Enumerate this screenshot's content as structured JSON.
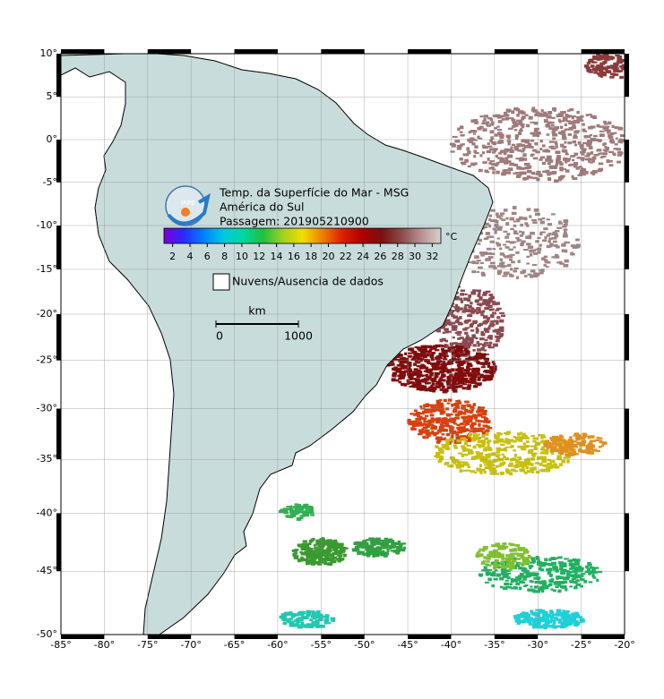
{
  "map": {
    "lon_range": [
      -85,
      -20
    ],
    "lat_range": [
      -50,
      10
    ],
    "lon_ticks": [
      {
        "value": -85,
        "label": "-85°"
      },
      {
        "value": -80,
        "label": "-80°"
      },
      {
        "value": -75,
        "label": "-75°"
      },
      {
        "value": -70,
        "label": "-70°"
      },
      {
        "value": -65,
        "label": "-65°"
      },
      {
        "value": -60,
        "label": "-60°"
      },
      {
        "value": -55,
        "label": "-55°"
      },
      {
        "value": -50,
        "label": "-50°"
      },
      {
        "value": -45,
        "label": "-45°"
      },
      {
        "value": -40,
        "label": "-40°"
      },
      {
        "value": -35,
        "label": "-35°"
      },
      {
        "value": -30,
        "label": "-30°"
      },
      {
        "value": -25,
        "label": "-25°"
      },
      {
        "value": -20,
        "label": "-20°"
      }
    ],
    "lat_ticks": [
      {
        "value": 10,
        "label": "10°"
      },
      {
        "value": 5,
        "label": "5°"
      },
      {
        "value": 0,
        "label": "0°"
      },
      {
        "value": -5,
        "label": "-5°"
      },
      {
        "value": -10,
        "label": "-10°"
      },
      {
        "value": -15,
        "label": "-15°"
      },
      {
        "value": -20,
        "label": "-20°"
      },
      {
        "value": -25,
        "label": "-25°"
      },
      {
        "value": -30,
        "label": "-30°"
      },
      {
        "value": -35,
        "label": "-35°"
      },
      {
        "value": -40,
        "label": "-40°"
      },
      {
        "value": -45,
        "label": "-45°"
      },
      {
        "value": -50,
        "label": "-50°"
      }
    ]
  },
  "logo": "INPE",
  "title": {
    "lines": [
      "Temp. da Superfície do Mar - MSG",
      "América do Sul",
      "Passagem: 201905210900"
    ]
  },
  "colorbar": {
    "range": [
      1,
      33
    ],
    "ticks": [
      2,
      4,
      6,
      8,
      10,
      12,
      14,
      16,
      18,
      20,
      22,
      24,
      26,
      28,
      30,
      32
    ],
    "unit": "°C",
    "colors": [
      "#7a00d8",
      "#2a2aff",
      "#0080ff",
      "#00c8e0",
      "#00d8a0",
      "#20c040",
      "#a0d020",
      "#f0e000",
      "#f08000",
      "#e02000",
      "#b00000",
      "#7a1010",
      "#8a4a4a",
      "#b89090",
      "#d8d0d0"
    ]
  },
  "legend": {
    "label": "Nuvens/Ausencia de dados"
  },
  "scale_bar": {
    "unit": "km",
    "ticks": [
      0,
      1000
    ]
  }
}
